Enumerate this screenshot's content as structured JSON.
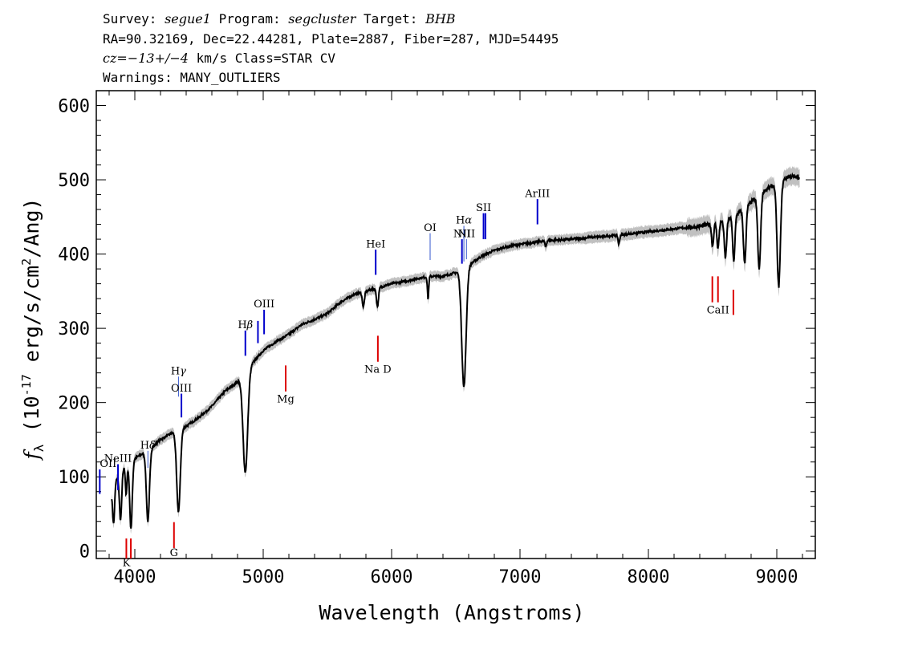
{
  "header": {
    "survey_label": "Survey:",
    "survey": "segue1",
    "program_label": "Program:",
    "program": "segcluster",
    "target_label": "Target:",
    "target": "BHB",
    "line2": "RA=90.32169, Dec=22.44281, Plate=2887, Fiber=287, MJD=54495",
    "cz_label": "cz=",
    "cz_value": "−13+/−4",
    "cz_rest": " km/s Class=STAR CV",
    "warnings": "Warnings: MANY_OUTLIERS"
  },
  "colors": {
    "emission": "#0000cc",
    "absorption": "#dd0000",
    "spectrum": "#000000",
    "error_band": "#c0c0c0"
  },
  "chart_data": {
    "type": "line",
    "xlabel": "Wavelength (Angstroms)",
    "ylabel": "f_λ (10^-17 erg/s/cm^2/Ang)",
    "xlim": [
      3700,
      9300
    ],
    "ylim": [
      -10,
      620
    ],
    "x_ticks": [
      4000,
      5000,
      6000,
      7000,
      8000,
      9000
    ],
    "y_ticks": [
      0,
      100,
      200,
      300,
      400,
      500,
      600
    ],
    "grid": false,
    "legend": "none",
    "continuum": {
      "x": [
        3820,
        3850,
        3900,
        3950,
        4000,
        4050,
        4100,
        4200,
        4300,
        4400,
        4500,
        4600,
        4700,
        4800,
        4900,
        5000,
        5100,
        5200,
        5300,
        5400,
        5500,
        5600,
        5700,
        5800,
        5900,
        6000,
        6100,
        6200,
        6300,
        6400,
        6500,
        6600,
        6700,
        6800,
        6900,
        7000,
        7200,
        7400,
        7600,
        7800,
        8000,
        8200,
        8400,
        8600,
        8700,
        8800,
        8900,
        9000,
        9100,
        9180
      ],
      "y": [
        80,
        95,
        110,
        118,
        125,
        130,
        135,
        150,
        160,
        168,
        180,
        195,
        215,
        228,
        250,
        270,
        282,
        292,
        305,
        312,
        320,
        335,
        345,
        350,
        355,
        360,
        363,
        367,
        370,
        370,
        375,
        385,
        397,
        405,
        410,
        413,
        418,
        420,
        423,
        426,
        430,
        434,
        437,
        445,
        455,
        470,
        485,
        495,
        505,
        503
      ]
    },
    "absorption_features": [
      {
        "x": 3835,
        "depth": 50,
        "width": 8
      },
      {
        "x": 3889,
        "depth": 65,
        "width": 9
      },
      {
        "x": 3933,
        "depth": 40,
        "width": 6
      },
      {
        "x": 3970,
        "depth": 90,
        "width": 10
      },
      {
        "x": 4102,
        "depth": 95,
        "width": 12
      },
      {
        "x": 4340,
        "depth": 110,
        "width": 14
      },
      {
        "x": 4861,
        "depth": 135,
        "width": 18
      },
      {
        "x": 5780,
        "depth": 20,
        "width": 8
      },
      {
        "x": 5890,
        "depth": 25,
        "width": 8
      },
      {
        "x": 6284,
        "depth": 30,
        "width": 5
      },
      {
        "x": 6563,
        "depth": 160,
        "width": 17
      },
      {
        "x": 7200,
        "depth": 8,
        "width": 6
      },
      {
        "x": 7770,
        "depth": 12,
        "width": 6
      },
      {
        "x": 8500,
        "depth": 30,
        "width": 8
      },
      {
        "x": 8542,
        "depth": 35,
        "width": 8
      },
      {
        "x": 8600,
        "depth": 50,
        "width": 9
      },
      {
        "x": 8665,
        "depth": 60,
        "width": 9
      },
      {
        "x": 8750,
        "depth": 75,
        "width": 10
      },
      {
        "x": 8863,
        "depth": 100,
        "width": 11
      },
      {
        "x": 9015,
        "depth": 140,
        "width": 13
      }
    ],
    "line_markers": [
      {
        "label": "OII",
        "x": 3727,
        "y1": 77,
        "y2": 110,
        "kind": "emission",
        "label_y": 113
      },
      {
        "label": "NeIII",
        "x": 3869,
        "y1": 82,
        "y2": 117,
        "kind": "emission",
        "label_y": 120
      },
      {
        "label": "Hδ",
        "x": 4102,
        "y1": 112,
        "y2": 135,
        "kind": "balmer",
        "label_y": 138
      },
      {
        "label": "Hγ",
        "x": 4340,
        "y1": 208,
        "y2": 235,
        "kind": "balmer",
        "label_y": 238
      },
      {
        "label": "OIII",
        "x": 4363,
        "y1": 180,
        "y2": 212,
        "kind": "emission",
        "label_y": 215
      },
      {
        "label": "Hβ",
        "x": 4861,
        "y1": 263,
        "y2": 297,
        "kind": "emission",
        "label_y": 300
      },
      {
        "label": "",
        "x": 4959,
        "y1": 280,
        "y2": 310,
        "kind": "emission",
        "label_y": 0
      },
      {
        "label": "OIII",
        "x": 5007,
        "y1": 292,
        "y2": 325,
        "kind": "emission",
        "label_y": 328
      },
      {
        "label": "HeI",
        "x": 5876,
        "y1": 372,
        "y2": 406,
        "kind": "emission",
        "label_y": 409
      },
      {
        "label": "OI",
        "x": 6300,
        "y1": 392,
        "y2": 428,
        "kind": "balmer",
        "label_y": 431
      },
      {
        "label": "NII",
        "x": 6548,
        "y1": 387,
        "y2": 420,
        "kind": "emission",
        "label_y": 423
      },
      {
        "label": "Hα",
        "x": 6563,
        "y1": 390,
        "y2": 438,
        "kind": "balmer",
        "label_y": 441
      },
      {
        "label": "NII",
        "x": 6583,
        "y1": 393,
        "y2": 420,
        "kind": "balmer",
        "label_y": 423
      },
      {
        "label": "SII",
        "x": 6716,
        "y1": 420,
        "y2": 455,
        "kind": "emission",
        "label_y": 458
      },
      {
        "label": "",
        "x": 6731,
        "y1": 420,
        "y2": 455,
        "kind": "emission",
        "label_y": 0
      },
      {
        "label": "ArIII",
        "x": 7136,
        "y1": 440,
        "y2": 474,
        "kind": "emission",
        "label_y": 477
      },
      {
        "label": "K",
        "x": 3934,
        "y1": -12,
        "y2": 17,
        "kind": "absorption",
        "label_y": -20
      },
      {
        "label": "",
        "x": 3969,
        "y1": -12,
        "y2": 17,
        "kind": "absorption",
        "label_y": 0
      },
      {
        "label": "G",
        "x": 4305,
        "y1": 4,
        "y2": 39,
        "kind": "absorption",
        "label_y": -7
      },
      {
        "label": "Mg",
        "x": 5175,
        "y1": 215,
        "y2": 250,
        "kind": "absorption",
        "label_y": 200
      },
      {
        "label": "Na D",
        "x": 5893,
        "y1": 255,
        "y2": 290,
        "kind": "absorption",
        "label_y": 240
      },
      {
        "label": "",
        "x": 8498,
        "y1": 335,
        "y2": 370,
        "kind": "absorption",
        "label_y": 0
      },
      {
        "label": "CaII",
        "x": 8542,
        "y1": 335,
        "y2": 370,
        "kind": "absorption",
        "label_y": 320
      },
      {
        "label": "",
        "x": 8662,
        "y1": 318,
        "y2": 352,
        "kind": "absorption",
        "label_y": 0
      }
    ]
  }
}
